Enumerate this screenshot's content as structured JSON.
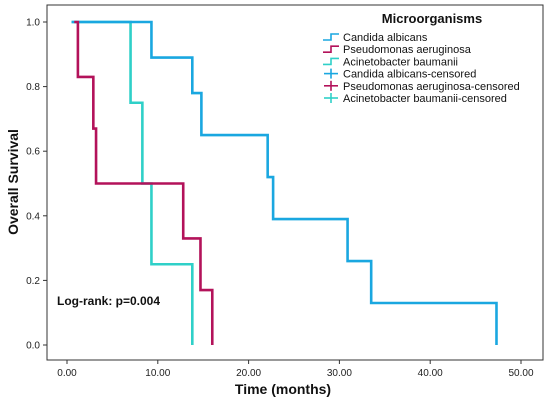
{
  "chart_data": {
    "type": "line",
    "subtype": "kaplan-meier-step",
    "xlabel": "Time (months)",
    "ylabel": "Overall Survival",
    "xlim": [
      0,
      50
    ],
    "ylim": [
      0,
      1
    ],
    "x_ticks": [
      "0.00",
      "10.00",
      "20.00",
      "30.00",
      "40.00",
      "50.00"
    ],
    "y_ticks": [
      "0.0",
      "0.2",
      "0.4",
      "0.6",
      "0.8",
      "1.0"
    ],
    "grid": false,
    "legend_title": "Microorganisms",
    "legend_position": "top-right",
    "legend": [
      {
        "label": "Candida albicans",
        "kind": "line",
        "color": "#1aa7e0"
      },
      {
        "label": "Pseudomonas aeruginosa",
        "kind": "line",
        "color": "#b3125a"
      },
      {
        "label": "Acinetobacter baumanii",
        "kind": "line",
        "color": "#2fd0c8"
      },
      {
        "label": "Candida albicans-censored",
        "kind": "cross",
        "color": "#1aa7e0"
      },
      {
        "label": "Pseudomonas aeruginosa-censored",
        "kind": "cross",
        "color": "#b3125a"
      },
      {
        "label": "Acinetobacter baumanii-censored",
        "kind": "cross",
        "color": "#2fd0c8"
      }
    ],
    "series": [
      {
        "name": "Acinetobacter baumanii",
        "color": "#2fd0c8",
        "points": [
          [
            0.5,
            1.0
          ],
          [
            7.0,
            0.75
          ],
          [
            8.3,
            0.5
          ],
          [
            9.3,
            0.25
          ],
          [
            13.8,
            0.0
          ]
        ]
      },
      {
        "name": "Candida albicans",
        "color": "#1aa7e0",
        "points": [
          [
            0.5,
            1.0
          ],
          [
            9.3,
            0.89
          ],
          [
            13.8,
            0.78
          ],
          [
            14.2,
            0.78
          ],
          [
            14.8,
            0.65
          ],
          [
            22.1,
            0.52
          ],
          [
            22.7,
            0.39
          ],
          [
            30.9,
            0.26
          ],
          [
            33.5,
            0.13
          ],
          [
            47.3,
            0.0
          ]
        ]
      },
      {
        "name": "Pseudomonas aeruginosa",
        "color": "#b3125a",
        "points": [
          [
            0.8,
            1.0
          ],
          [
            1.2,
            0.83
          ],
          [
            2.9,
            0.67
          ],
          [
            3.2,
            0.5
          ],
          [
            12.8,
            0.33
          ],
          [
            14.7,
            0.17
          ],
          [
            16.0,
            0.0
          ]
        ]
      }
    ],
    "annotation": "Log-rank: p=0.004"
  }
}
